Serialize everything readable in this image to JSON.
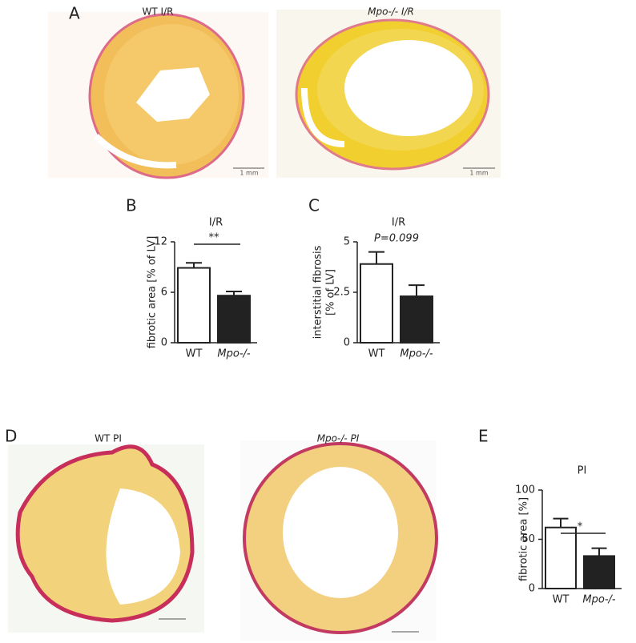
{
  "figure": {
    "panel_labels": [
      "A",
      "B",
      "C",
      "D",
      "E"
    ],
    "image_captions": [
      "WT I/R",
      "Mpo-/- I/R",
      "WT PI",
      "Mpo-/- PI"
    ],
    "scale_bars": [
      "1 mm",
      "1 mm"
    ]
  },
  "chart_data": [
    {
      "type": "bar",
      "title": "I/R",
      "y_label": [
        "fibrotic area [% of LV]"
      ],
      "categories": [
        "WT",
        "Mpo-/-"
      ],
      "values": [
        8.9,
        5.6
      ],
      "errors": [
        0.6,
        0.5
      ],
      "colors": [
        "#ffffff",
        "#222222"
      ],
      "ylim": [
        0,
        12
      ],
      "yticks": [
        0,
        6,
        12
      ],
      "annotation": "**"
    },
    {
      "type": "bar",
      "title": "I/R",
      "y_label": [
        "interstitial fibrosis",
        "[% of LV]"
      ],
      "categories": [
        "WT",
        "Mpo-/-"
      ],
      "values": [
        3.9,
        2.3
      ],
      "errors": [
        0.6,
        0.55
      ],
      "colors": [
        "#ffffff",
        "#222222"
      ],
      "ylim": [
        0,
        5
      ],
      "yticks": [
        0,
        2.5,
        5
      ],
      "annotation": "P=0.099"
    },
    {
      "type": "bar",
      "title": "PI",
      "y_label": [
        "fibrotic area [%]"
      ],
      "categories": [
        "WT",
        "Mpo-/-"
      ],
      "values": [
        62,
        33
      ],
      "errors": [
        9,
        8
      ],
      "colors": [
        "#ffffff",
        "#222222"
      ],
      "ylim": [
        0,
        100
      ],
      "yticks": [
        0,
        50,
        100
      ],
      "annotation": "*"
    }
  ]
}
